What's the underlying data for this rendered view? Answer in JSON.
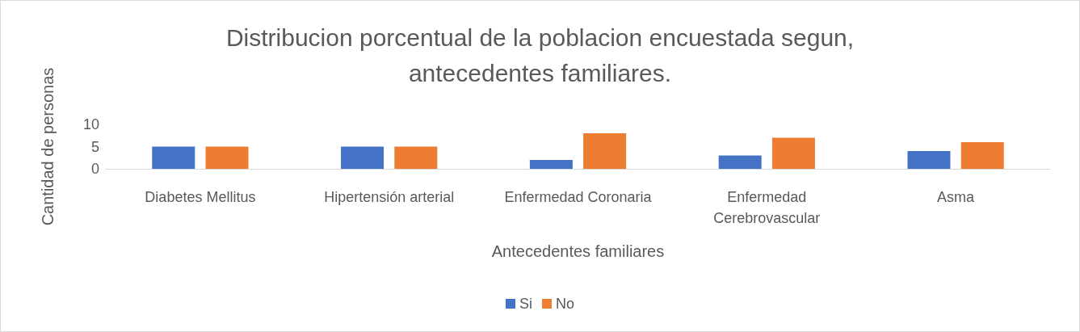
{
  "chart_data": {
    "type": "bar",
    "title": "Distribucion porcentual de la poblacion encuestada segun,\nantecedentes familiares.",
    "xlabel": "Antecedentes familiares",
    "ylabel": "Cantidad de personas",
    "categories": [
      "Diabetes Mellitus",
      "Hipertensión arterial",
      "Enfermedad Coronaria",
      "Enfermedad\nCerebrovascular",
      "Asma"
    ],
    "series": [
      {
        "name": "Si",
        "color": "#4472c4",
        "values": [
          5,
          5,
          2,
          3,
          4
        ]
      },
      {
        "name": "No",
        "color": "#ed7d31",
        "values": [
          5,
          5,
          8,
          7,
          6
        ]
      }
    ],
    "ylim": [
      0,
      10
    ],
    "yticks": [
      0,
      5,
      10
    ],
    "grid": false,
    "legend": "bottom"
  }
}
